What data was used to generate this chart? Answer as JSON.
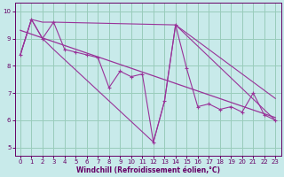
{
  "xlabel": "Windchill (Refroidissement éolien,°C)",
  "bg_color": "#c8eaea",
  "line_color": "#993399",
  "grid_color": "#99ccbb",
  "axis_color": "#660066",
  "spine_color": "#660066",
  "xlim": [
    -0.5,
    23.5
  ],
  "ylim": [
    4.7,
    10.3
  ],
  "xticks": [
    0,
    1,
    2,
    3,
    4,
    5,
    6,
    7,
    8,
    9,
    10,
    11,
    12,
    13,
    14,
    15,
    16,
    17,
    18,
    19,
    20,
    21,
    22,
    23
  ],
  "yticks": [
    5,
    6,
    7,
    8,
    9,
    10
  ],
  "data_x": [
    0,
    1,
    2,
    3,
    4,
    5,
    6,
    7,
    8,
    9,
    10,
    11,
    12,
    13,
    14,
    15,
    16,
    17,
    18,
    19,
    20,
    21,
    22,
    23
  ],
  "data_y": [
    8.4,
    9.7,
    9.0,
    9.6,
    8.6,
    8.5,
    8.4,
    8.3,
    7.2,
    7.8,
    7.6,
    7.7,
    5.2,
    6.7,
    9.5,
    7.9,
    6.5,
    6.6,
    6.4,
    6.5,
    6.3,
    7.0,
    6.2,
    6.0
  ],
  "trend_x": [
    0,
    23
  ],
  "trend_y": [
    9.3,
    6.1
  ],
  "envelope_x1": [
    0,
    1,
    2,
    3,
    14,
    23
  ],
  "envelope_y1": [
    8.4,
    9.7,
    9.6,
    9.6,
    9.5,
    6.8
  ],
  "envelope_x2": [
    0,
    1,
    2,
    3,
    12,
    13,
    14,
    23
  ],
  "envelope_y2": [
    8.4,
    9.7,
    9.0,
    8.6,
    5.2,
    6.7,
    9.5,
    6.0
  ],
  "xlabel_fontsize": 5.5,
  "tick_fontsize": 5.0
}
